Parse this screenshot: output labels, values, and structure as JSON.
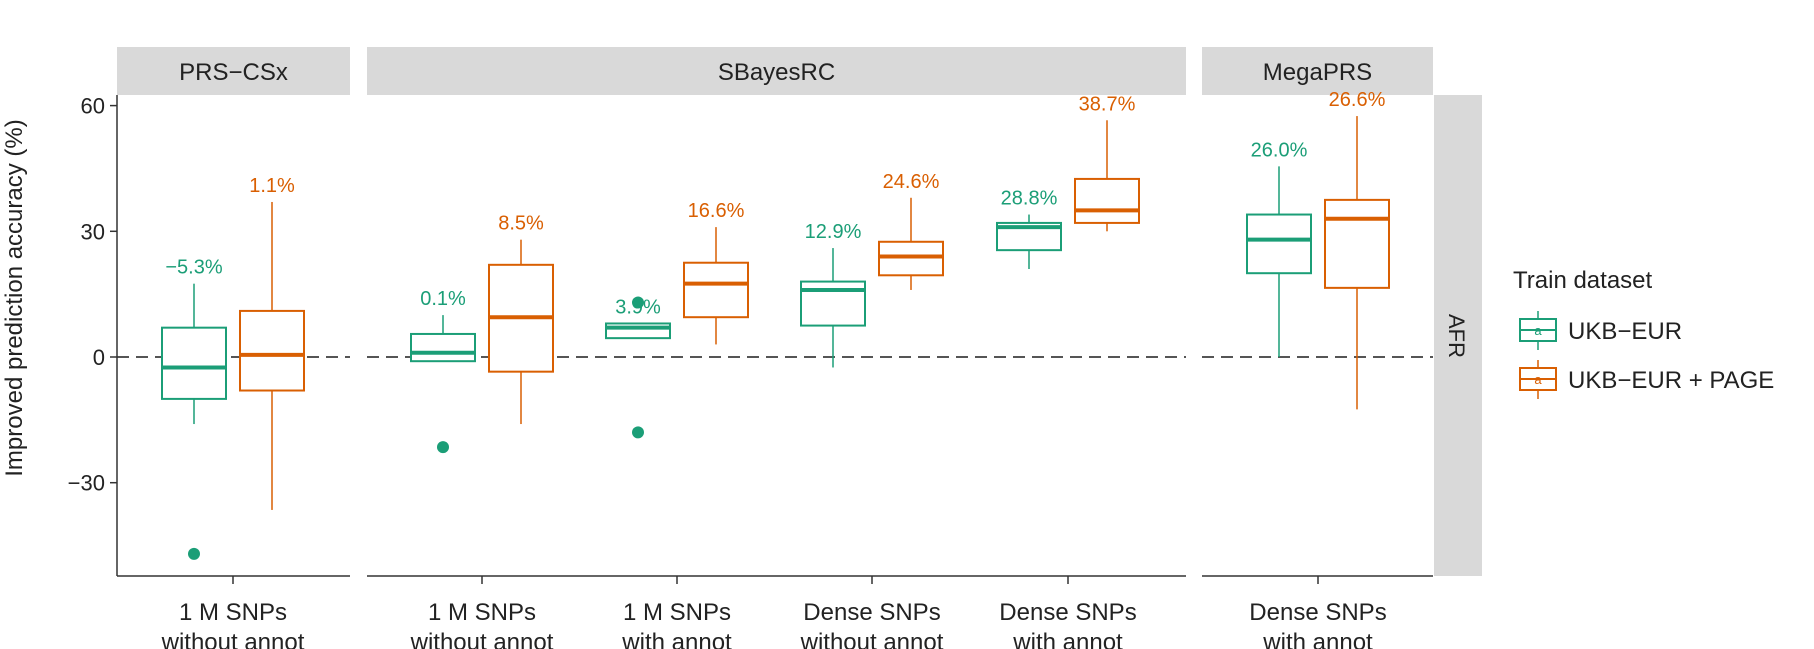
{
  "chart_data": {
    "type": "boxplot",
    "ylabel": "Improved prediction accuracy (%)",
    "ylim": [
      -52,
      64
    ],
    "yticks": [
      60,
      30,
      0,
      -30
    ],
    "ytick_labels": [
      "60",
      "30",
      "0",
      "−30"
    ],
    "reference_line": 0,
    "row_strip": "AFR",
    "legend": {
      "title": "Train dataset",
      "placement": "right",
      "key_glyph": "a",
      "entries": [
        {
          "name": "UKB−EUR",
          "color": "#1b9e77"
        },
        {
          "name": "UKB−EUR + PAGE",
          "color": "#d95f02"
        }
      ]
    },
    "panels": [
      {
        "strip": "PRS−CSx",
        "categories": [
          {
            "label1": "1 M SNPs",
            "label2": "without annot",
            "boxes": [
              {
                "series": "UKB−EUR",
                "min": -16,
                "q1": -10,
                "median": -2.5,
                "q3": 7,
                "max": 17.5,
                "outliers": [
                  -47
                ],
                "annotation": "−5.3%"
              },
              {
                "series": "UKB−EUR + PAGE",
                "min": -36.5,
                "q1": -8,
                "median": 0.5,
                "q3": 11,
                "max": 37,
                "outliers": [],
                "annotation": "1.1%"
              }
            ]
          }
        ]
      },
      {
        "strip": "SBayesRC",
        "categories": [
          {
            "label1": "1 M SNPs",
            "label2": "without annot",
            "boxes": [
              {
                "series": "UKB−EUR",
                "min": -1,
                "q1": -1,
                "median": 1,
                "q3": 5.5,
                "max": 10,
                "outliers": [
                  -21.5
                ],
                "annotation": "0.1%"
              },
              {
                "series": "UKB−EUR + PAGE",
                "min": -16,
                "q1": -3.5,
                "median": 9.5,
                "q3": 22,
                "max": 28,
                "outliers": [],
                "annotation": "8.5%"
              }
            ]
          },
          {
            "label1": "1 M SNPs",
            "label2": "with annot",
            "boxes": [
              {
                "series": "UKB−EUR",
                "min": 4.5,
                "q1": 4.5,
                "median": 7,
                "q3": 8,
                "max": 8,
                "outliers": [
                  13,
                  -18
                ],
                "annotation": "3.9%"
              },
              {
                "series": "UKB−EUR + PAGE",
                "min": 3,
                "q1": 9.5,
                "median": 17.5,
                "q3": 22.5,
                "max": 31,
                "outliers": [],
                "annotation": "16.6%"
              }
            ]
          },
          {
            "label1": "Dense SNPs",
            "label2": "without annot",
            "boxes": [
              {
                "series": "UKB−EUR",
                "min": -2.5,
                "q1": 7.5,
                "median": 16,
                "q3": 18,
                "max": 26,
                "outliers": [],
                "annotation": "12.9%"
              },
              {
                "series": "UKB−EUR + PAGE",
                "min": 16,
                "q1": 19.5,
                "median": 24,
                "q3": 27.5,
                "max": 38,
                "outliers": [],
                "annotation": "24.6%"
              }
            ]
          },
          {
            "label1": "Dense SNPs",
            "label2": "with annot",
            "boxes": [
              {
                "series": "UKB−EUR",
                "min": 21,
                "q1": 25.5,
                "median": 31,
                "q3": 32,
                "max": 34,
                "outliers": [],
                "annotation": "28.8%"
              },
              {
                "series": "UKB−EUR + PAGE",
                "min": 30,
                "q1": 32,
                "median": 35,
                "q3": 42.5,
                "max": 56.5,
                "outliers": [],
                "annotation": "38.7%"
              }
            ]
          }
        ]
      },
      {
        "strip": "MegaPRS",
        "categories": [
          {
            "label1": "Dense SNPs",
            "label2": "with annot",
            "boxes": [
              {
                "series": "UKB−EUR",
                "min": 0,
                "q1": 20,
                "median": 28,
                "q3": 34,
                "max": 45.5,
                "outliers": [],
                "annotation": "26.0%"
              },
              {
                "series": "UKB−EUR + PAGE",
                "min": -12.5,
                "q1": 16.5,
                "median": 33,
                "q3": 37.5,
                "max": 57.5,
                "outliers": [],
                "annotation": "26.6%"
              }
            ]
          }
        ]
      }
    ]
  }
}
